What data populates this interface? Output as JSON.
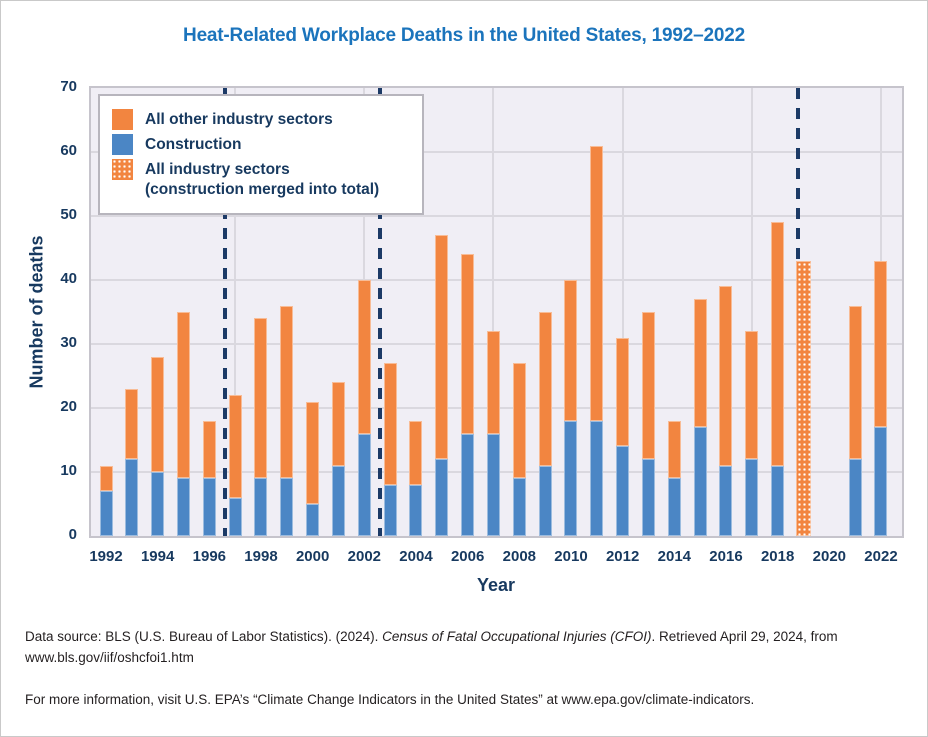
{
  "chart_data": {
    "type": "bar",
    "stacked": true,
    "title": "Heat-Related Workplace Deaths in the United States, 1992–2022",
    "xlabel": "Year",
    "ylabel": "Number of deaths",
    "ylim": [
      0,
      70
    ],
    "y_ticks": [
      0,
      10,
      20,
      30,
      40,
      50,
      60,
      70
    ],
    "x_tick_labels": [
      "1992",
      "1994",
      "1996",
      "1998",
      "2000",
      "2002",
      "2004",
      "2006",
      "2008",
      "2010",
      "2012",
      "2014",
      "2016",
      "2018",
      "2020",
      "2022"
    ],
    "x_years": [
      1992,
      1993,
      1994,
      1995,
      1996,
      1997,
      1998,
      1999,
      2000,
      2001,
      2002,
      2003,
      2004,
      2005,
      2006,
      2007,
      2008,
      2009,
      2010,
      2011,
      2012,
      2013,
      2014,
      2015,
      2016,
      2017,
      2018,
      2019,
      2020,
      2021,
      2022
    ],
    "series": [
      {
        "name": "Construction",
        "color": "#4B86C5",
        "values": [
          7,
          12,
          10,
          9,
          9,
          6,
          9,
          9,
          5,
          11,
          16,
          8,
          8,
          12,
          16,
          16,
          9,
          11,
          18,
          18,
          14,
          12,
          9,
          17,
          11,
          12,
          11,
          null,
          null,
          12,
          17
        ]
      },
      {
        "name": "All other industry sectors",
        "color": "#F28540",
        "values": [
          4,
          11,
          18,
          26,
          9,
          16,
          25,
          27,
          16,
          13,
          24,
          19,
          10,
          35,
          28,
          16,
          18,
          24,
          22,
          43,
          17,
          23,
          9,
          20,
          28,
          20,
          38,
          null,
          null,
          24,
          26
        ]
      }
    ],
    "merged_series": {
      "name": "All industry sectors (construction merged into total)",
      "color": "#F28540",
      "pattern": "white-dots",
      "values": [
        null,
        null,
        null,
        null,
        null,
        null,
        null,
        null,
        null,
        null,
        null,
        null,
        null,
        null,
        null,
        null,
        null,
        null,
        null,
        null,
        null,
        null,
        null,
        null,
        null,
        null,
        null,
        43,
        null,
        null,
        null
      ]
    },
    "totals": [
      11,
      23,
      28,
      35,
      18,
      22,
      34,
      36,
      21,
      24,
      40,
      27,
      18,
      47,
      44,
      32,
      27,
      35,
      40,
      61,
      31,
      35,
      18,
      37,
      39,
      32,
      49,
      43,
      null,
      36,
      43
    ],
    "missing_years": [
      2020
    ],
    "dashed_separators_at_years": [
      1996.6,
      2002.6,
      2018.8
    ],
    "vertical_gridline_years": [
      1997,
      2002,
      2007,
      2012,
      2017,
      2022
    ],
    "grid": true,
    "legend_position": "upper-left",
    "legend": [
      {
        "label": "All other industry sectors",
        "swatch": "orange-solid"
      },
      {
        "label": "Construction",
        "swatch": "blue-solid"
      },
      {
        "label_line1": "All industry sectors",
        "label_line2": "(construction merged into total)",
        "swatch": "orange-dotted"
      }
    ]
  },
  "colors": {
    "orange": "#F28540",
    "blue": "#4B86C5",
    "title_blue": "#1B74BC",
    "axis_navy": "#17395F",
    "plot_background": "#F0EEF5",
    "gridline": "#DAD8DF",
    "dashed_line_navy": "#1C3A66",
    "footer_text": "#231F20"
  },
  "footer": {
    "line1_prefix": "Data source: BLS (U.S. Bureau of Labor Statistics). (2024). ",
    "line1_italic": "Census of Fatal Occupational Injuries (CFOI)",
    "line1_suffix": ". Retrieved April 29, 2024, from www.bls.gov/iif/oshcfoi1.htm",
    "line2": "For more information, visit U.S. EPA’s “Climate Change Indicators in the United States” at www.epa.gov/climate-indicators."
  }
}
